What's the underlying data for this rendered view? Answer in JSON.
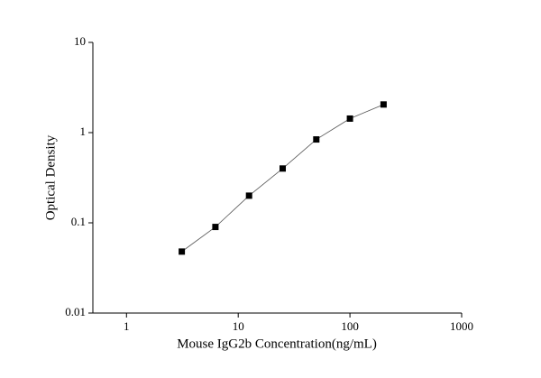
{
  "chart_data": {
    "type": "line",
    "xlabel": "Mouse IgG2b Concentration(ng/mL)",
    "ylabel": "Optical Density",
    "x": [
      3.125,
      6.25,
      12.5,
      25,
      50,
      100,
      200
    ],
    "series": [
      {
        "color": "#000000",
        "values": [
          0.048,
          0.09,
          0.2,
          0.4,
          0.84,
          1.43,
          2.05
        ]
      }
    ],
    "xscale": "log",
    "yscale": "log",
    "xlim": [
      0.5,
      1000
    ],
    "ylim": [
      0.01,
      10
    ],
    "xticks": [
      1,
      10,
      100,
      1000
    ],
    "yticks": [
      0.01,
      0.1,
      1,
      10
    ],
    "grid": false
  }
}
